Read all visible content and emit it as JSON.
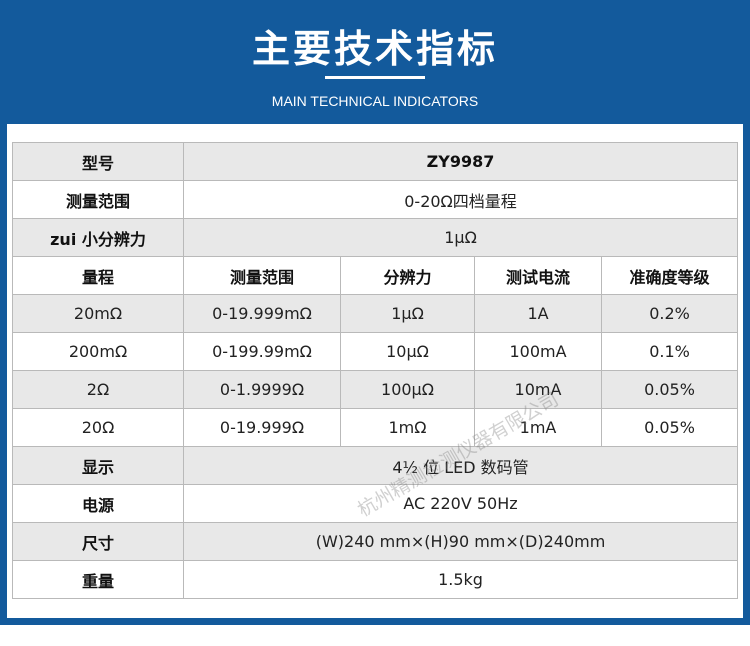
{
  "header": {
    "title": "主要技术指标",
    "subtitle": "MAIN TECHNICAL INDICATORS"
  },
  "specs": {
    "model": {
      "label": "型号",
      "value": "ZY9987"
    },
    "measure_range": {
      "label": "测量范围",
      "value": "0-20Ω四档量程"
    },
    "min_resolution": {
      "label": "zui 小分辨力",
      "value": "1μΩ"
    },
    "range_table": {
      "headers": [
        "量程",
        "测量范围",
        "分辨力",
        "测试电流",
        "准确度等级"
      ],
      "rows": [
        [
          "20mΩ",
          "0-19.999mΩ",
          "1μΩ",
          "1A",
          "0.2%"
        ],
        [
          "200mΩ",
          "0-199.99mΩ",
          "10μΩ",
          "100mA",
          "0.1%"
        ],
        [
          "2Ω",
          "0-1.9999Ω",
          "100μΩ",
          "10mA",
          "0.05%"
        ],
        [
          "20Ω",
          "0-19.999Ω",
          "1mΩ",
          "1mA",
          "0.05%"
        ]
      ]
    },
    "display": {
      "label": "显示",
      "value": "4½ 位 LED 数码管"
    },
    "power": {
      "label": "电源",
      "value": "AC 220V 50Hz"
    },
    "size": {
      "label": "尺寸",
      "value": "(W)240 mm×(H)90 mm×(D)240mm"
    },
    "weight": {
      "label": "重量",
      "value": "1.5kg"
    }
  },
  "watermark": "杭州精测检测仪器有限公司",
  "colors": {
    "header_bg": "#135a9c",
    "shade_row": "#e8e8e8",
    "border": "#b9b9b9"
  }
}
